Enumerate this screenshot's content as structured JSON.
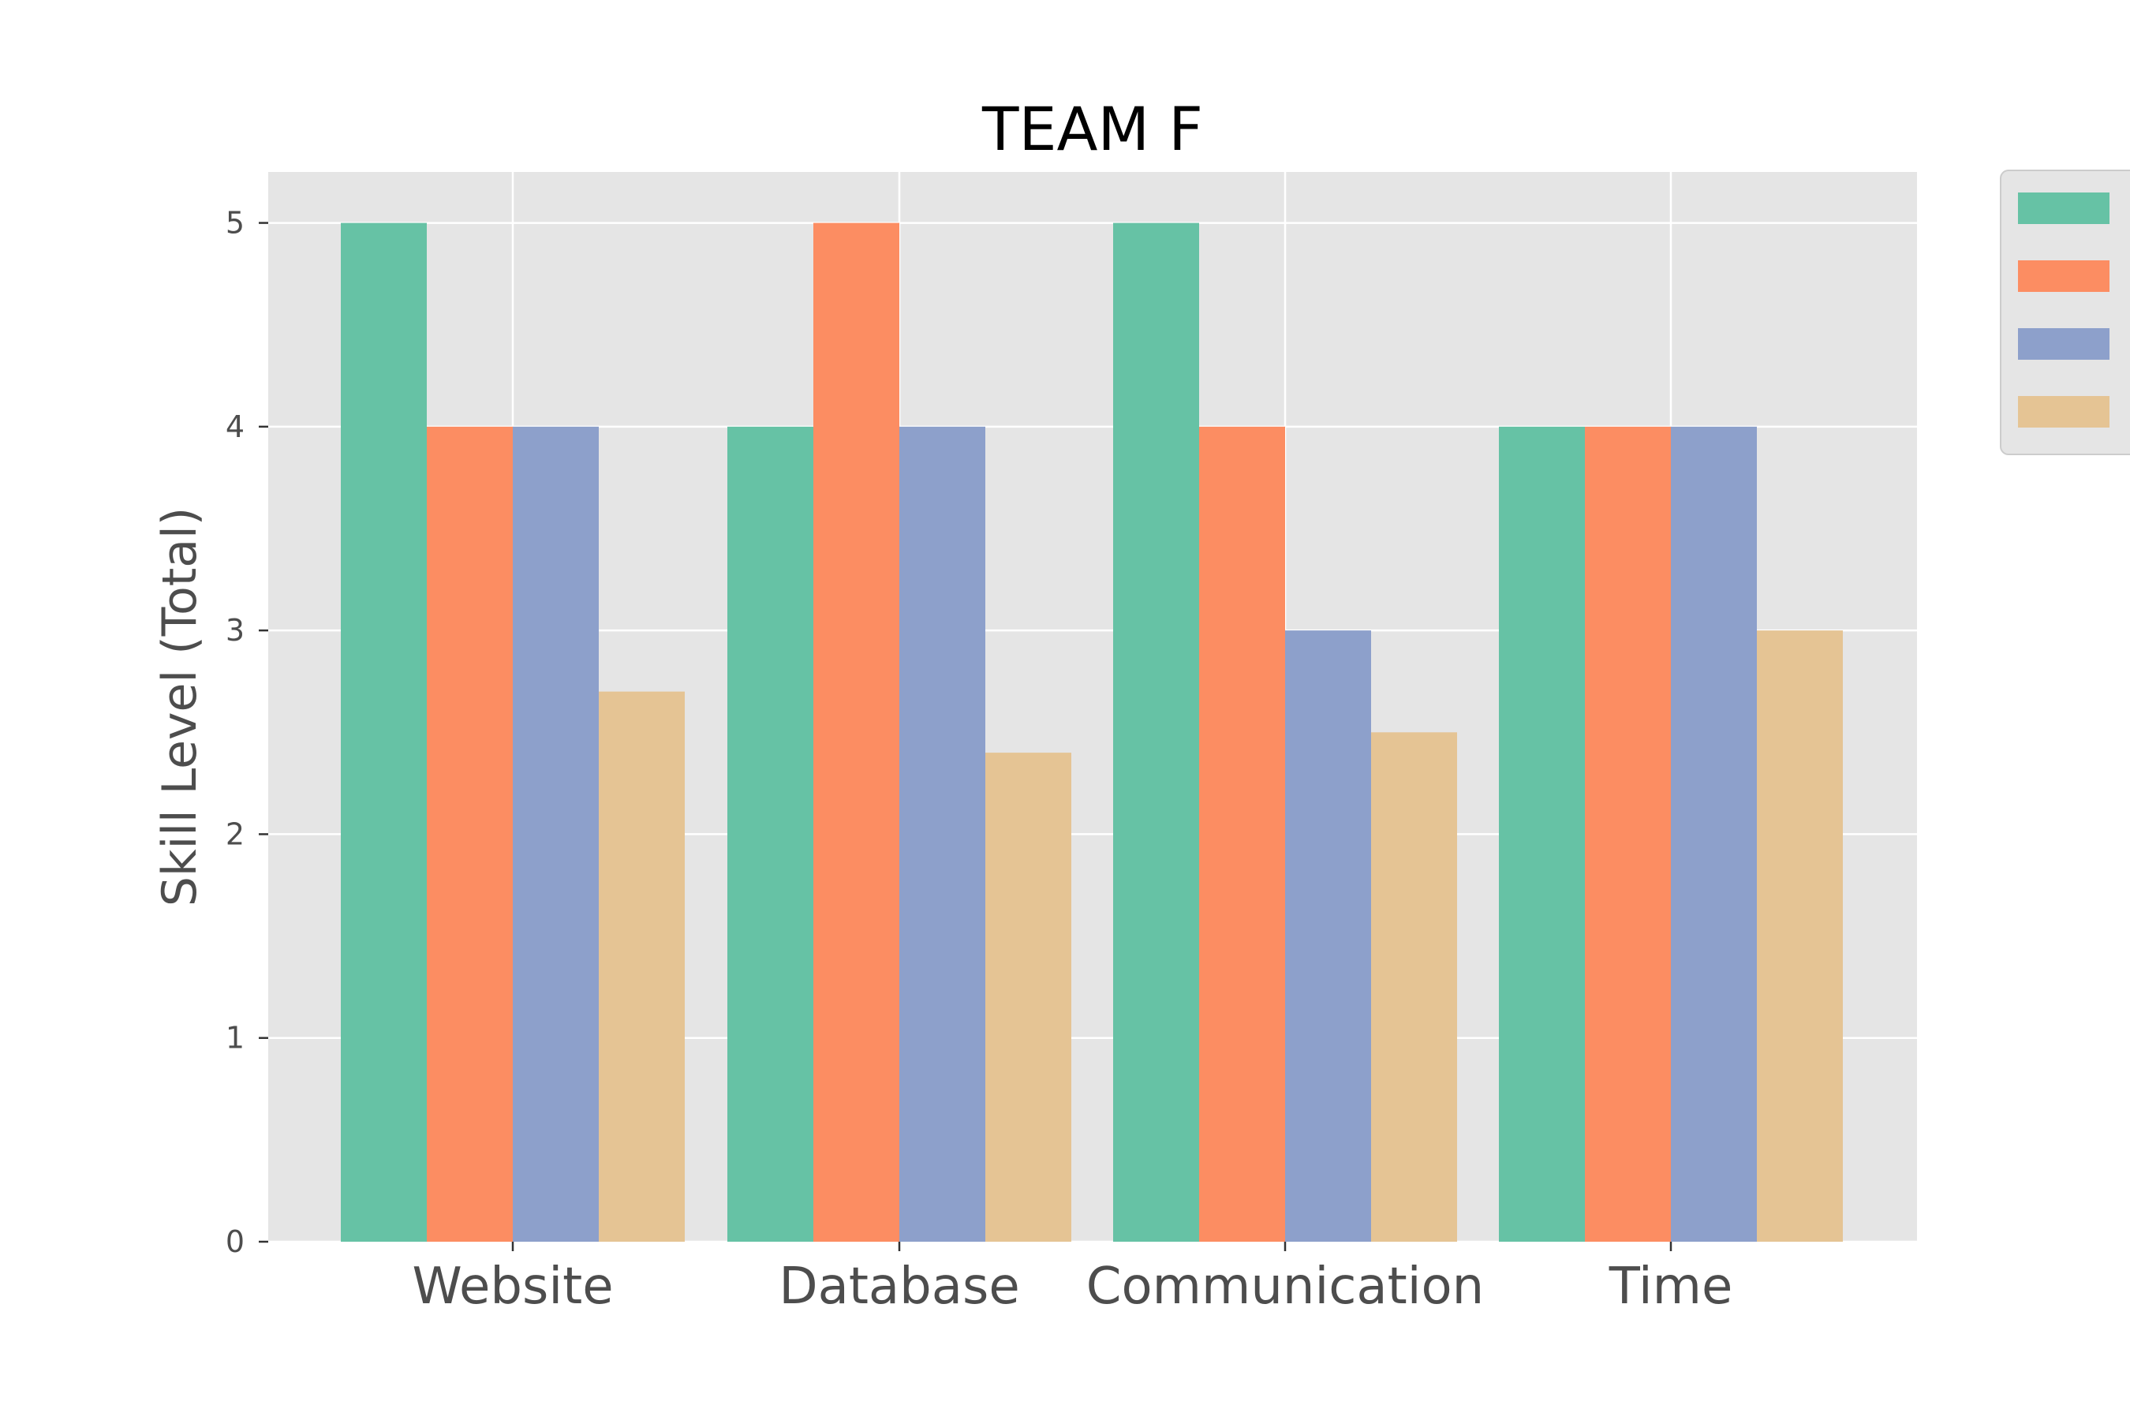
{
  "chart_data": {
    "type": "bar",
    "title": "TEAM F",
    "xlabel": "",
    "ylabel": "Skill Level (Total)",
    "categories": [
      "Website",
      "Database",
      "Communication",
      "Time"
    ],
    "series": [
      {
        "color": "#66c2a5",
        "values": [
          5,
          4,
          5,
          4
        ]
      },
      {
        "color": "#fc8d62",
        "values": [
          4,
          5,
          4,
          4
        ]
      },
      {
        "color": "#8da0cb",
        "values": [
          4,
          4,
          3,
          4
        ]
      },
      {
        "color": "#e5c494",
        "values": [
          2.7,
          2.4,
          2.5,
          3
        ]
      }
    ],
    "ylim": [
      0,
      5.25
    ],
    "yticks": [
      "0",
      "1",
      "2",
      "3",
      "4",
      "5"
    ],
    "grid": true,
    "legend": "outside-top-right",
    "style": {
      "background": "#e5e5e5",
      "grid_color": "#ffffff"
    }
  }
}
